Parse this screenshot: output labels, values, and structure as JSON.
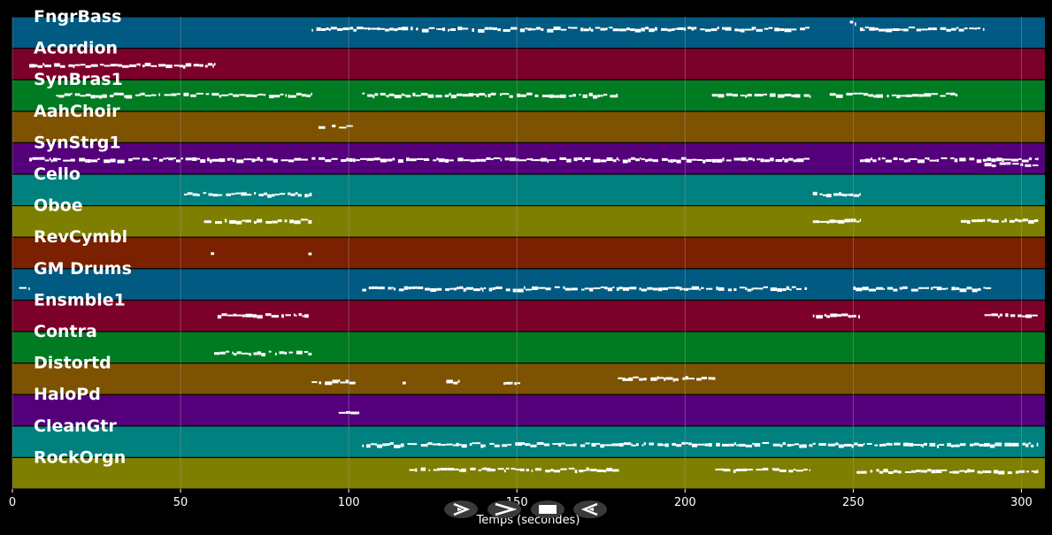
{
  "colors": {
    "background": "#000000",
    "grid": "#9a9a9a",
    "note": "#ffffff",
    "lane_palette": [
      "#005a82",
      "#7b002a",
      "#007b22",
      "#7d5200",
      "#55007b",
      "#00807e",
      "#7e7f00",
      "#7b2000"
    ]
  },
  "x_axis": {
    "label": "Temps (secondes)",
    "min": 0,
    "max": 307,
    "ticks": [
      0,
      50,
      100,
      150,
      200,
      250,
      300
    ]
  },
  "tracks": [
    {
      "name": "FngrBass",
      "color": "#005a82",
      "segments": [
        [
          89,
          237,
          0.35
        ],
        [
          249,
          251,
          0.15
        ],
        [
          252,
          289,
          0.35
        ]
      ]
    },
    {
      "name": "Acordion",
      "color": "#7b002a",
      "segments": [
        [
          5,
          60,
          0.5
        ]
      ]
    },
    {
      "name": "SynBras1",
      "color": "#007b22",
      "segments": [
        [
          13,
          89,
          0.45
        ],
        [
          104,
          180,
          0.45
        ],
        [
          208,
          237,
          0.45
        ],
        [
          243,
          281,
          0.45
        ]
      ]
    },
    {
      "name": "AahChoir",
      "color": "#7d5200",
      "segments": [
        [
          91,
          93,
          0.45
        ],
        [
          95,
          101,
          0.45
        ]
      ]
    },
    {
      "name": "SynStrg1",
      "color": "#55007b",
      "segments": [
        [
          5,
          237,
          0.5
        ],
        [
          252,
          305,
          0.5
        ],
        [
          289,
          305,
          0.65
        ]
      ]
    },
    {
      "name": "Cello",
      "color": "#00807e",
      "segments": [
        [
          51,
          89,
          0.6
        ],
        [
          238,
          252,
          0.6
        ]
      ]
    },
    {
      "name": "Oboe",
      "color": "#7e7f00",
      "segments": [
        [
          57,
          89,
          0.45
        ],
        [
          238,
          252,
          0.45
        ],
        [
          282,
          305,
          0.45
        ]
      ]
    },
    {
      "name": "RevCymbl",
      "color": "#7b2000",
      "segments": [
        [
          59,
          60,
          0.45
        ],
        [
          88,
          89,
          0.45
        ]
      ]
    },
    {
      "name": "GM Drums",
      "color": "#005a82",
      "segments": [
        [
          2,
          5,
          0.6
        ],
        [
          104,
          237,
          0.6
        ],
        [
          250,
          291,
          0.6
        ]
      ]
    },
    {
      "name": "Ensmble1",
      "color": "#7b002a",
      "segments": [
        [
          61,
          89,
          0.45
        ],
        [
          238,
          252,
          0.45
        ],
        [
          289,
          305,
          0.45
        ]
      ]
    },
    {
      "name": "Contra",
      "color": "#007b22",
      "segments": [
        [
          60,
          89,
          0.65
        ]
      ]
    },
    {
      "name": "Distortd",
      "color": "#7d5200",
      "segments": [
        [
          89,
          102,
          0.55
        ],
        [
          116,
          117,
          0.55
        ],
        [
          129,
          133,
          0.55
        ],
        [
          146,
          151,
          0.6
        ],
        [
          180,
          209,
          0.45
        ]
      ]
    },
    {
      "name": "HaloPd",
      "color": "#55007b",
      "segments": [
        [
          97,
          103,
          0.55
        ]
      ]
    },
    {
      "name": "CleanGtr",
      "color": "#00807e",
      "segments": [
        [
          104,
          305,
          0.55
        ]
      ]
    },
    {
      "name": "RockOrgn",
      "color": "#7e7f00",
      "segments": [
        [
          118,
          180,
          0.35
        ],
        [
          209,
          237,
          0.35
        ],
        [
          251,
          305,
          0.4
        ]
      ]
    }
  ],
  "controls": [
    {
      "name": "rewind-button",
      "icon": "rewind-icon"
    },
    {
      "name": "play-button",
      "icon": "play-icon"
    },
    {
      "name": "stop-button",
      "icon": "stop-icon"
    },
    {
      "name": "forward-button",
      "icon": "forward-icon"
    }
  ]
}
